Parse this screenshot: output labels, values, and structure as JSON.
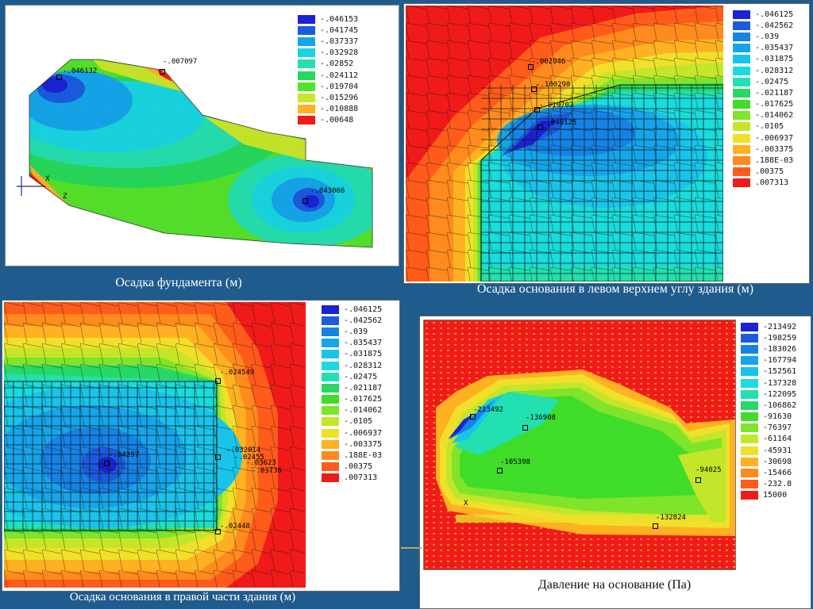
{
  "panels": {
    "p1": {
      "caption": "Осадка фундамента (м)",
      "legend": [
        {
          "v": "-.046153",
          "c": "#1a22d6"
        },
        {
          "v": "-.041745",
          "c": "#1a5be0"
        },
        {
          "v": "-.037337",
          "c": "#15a5ea"
        },
        {
          "v": "-.032928",
          "c": "#19d5e0"
        },
        {
          "v": "-.02852",
          "c": "#25dfae"
        },
        {
          "v": "-.024112",
          "c": "#27d85b"
        },
        {
          "v": "-.019704",
          "c": "#55e22a"
        },
        {
          "v": "-.015296",
          "c": "#c8e62a"
        },
        {
          "v": "-.010888",
          "c": "#ffb122"
        },
        {
          "v": "-.00648",
          "c": "#f01a1a"
        }
      ],
      "markers": [
        {
          "t": "-.046132"
        },
        {
          "t": "-.007097"
        },
        {
          "t": "-.043066"
        }
      ],
      "axis": {
        "x": "X",
        "z": "Z"
      }
    },
    "p2": {
      "caption": "Осадка основания в левом верхнем углу здания (м)",
      "legend": [
        {
          "v": "-.046125",
          "c": "#1a22d6"
        },
        {
          "v": "-.042562",
          "c": "#1a5be0"
        },
        {
          "v": "-.039",
          "c": "#1583e6"
        },
        {
          "v": "-.035437",
          "c": "#15a5ea"
        },
        {
          "v": "-.031875",
          "c": "#19c4ea"
        },
        {
          "v": "-.028312",
          "c": "#19dcdc"
        },
        {
          "v": "-.02475",
          "c": "#22e0b0"
        },
        {
          "v": "-.021187",
          "c": "#27d867"
        },
        {
          "v": "-.017625",
          "c": "#40dc2a"
        },
        {
          "v": "-.014062",
          "c": "#7fe42a"
        },
        {
          "v": "-.0105",
          "c": "#c4e62a"
        },
        {
          "v": "-.006937",
          "c": "#f0e02a"
        },
        {
          "v": "-.003375",
          "c": "#ffb122"
        },
        {
          "v": ".188E-03",
          "c": "#ff8a1d"
        },
        {
          "v": ".00375",
          "c": "#ff5b1b"
        },
        {
          "v": ".007313",
          "c": "#f01a1a"
        }
      ],
      "markers": [
        {
          "t": "-.002046"
        },
        {
          "t": "-.100298"
        },
        {
          "t": "-.010702"
        },
        {
          "t": "-.046125"
        }
      ]
    },
    "p3": {
      "caption": "Осадка основания в правой части здания (м)",
      "legend": [
        {
          "v": "-.046125",
          "c": "#1a22d6"
        },
        {
          "v": "-.042562",
          "c": "#1a5be0"
        },
        {
          "v": "-.039",
          "c": "#1583e6"
        },
        {
          "v": "-.035437",
          "c": "#15a5ea"
        },
        {
          "v": "-.031875",
          "c": "#19c4ea"
        },
        {
          "v": "-.028312",
          "c": "#19dcdc"
        },
        {
          "v": "-.02475",
          "c": "#22e0b0"
        },
        {
          "v": "-.021187",
          "c": "#27d867"
        },
        {
          "v": "-.017625",
          "c": "#40dc2a"
        },
        {
          "v": "-.014062",
          "c": "#7fe42a"
        },
        {
          "v": "-.0105",
          "c": "#c4e62a"
        },
        {
          "v": "-.006937",
          "c": "#f0e02a"
        },
        {
          "v": "-.003375",
          "c": "#ffb122"
        },
        {
          "v": ".188E-03",
          "c": "#ff8a1d"
        },
        {
          "v": ".00375",
          "c": "#ff5b1b"
        },
        {
          "v": ".007313",
          "c": "#f01a1a"
        }
      ],
      "markers": [
        {
          "t": "-.024549"
        },
        {
          "t": "-.04297"
        },
        {
          "t": "-.032014"
        },
        {
          "t": "-.03623"
        },
        {
          "t": "-.02455"
        },
        {
          "t": "-.03736"
        },
        {
          "t": "-.02448"
        }
      ]
    },
    "p4": {
      "caption": "Давление на основание (Па)",
      "legend": [
        {
          "v": "-213492",
          "c": "#1a22d6"
        },
        {
          "v": "-198259",
          "c": "#1a5be0"
        },
        {
          "v": "-183026",
          "c": "#1583e6"
        },
        {
          "v": "-167794",
          "c": "#15a5ea"
        },
        {
          "v": "-152561",
          "c": "#19c4ea"
        },
        {
          "v": "-137328",
          "c": "#19dcdc"
        },
        {
          "v": "-122095",
          "c": "#22e0b0"
        },
        {
          "v": "-106862",
          "c": "#27d867"
        },
        {
          "v": "-91630",
          "c": "#40dc2a"
        },
        {
          "v": "-76397",
          "c": "#7fe42a"
        },
        {
          "v": "-61164",
          "c": "#c4e62a"
        },
        {
          "v": "-45931",
          "c": "#f0e02a"
        },
        {
          "v": "-30698",
          "c": "#ffb122"
        },
        {
          "v": "-15466",
          "c": "#ff8a1d"
        },
        {
          "v": "-232.8",
          "c": "#ff5b1b"
        },
        {
          "v": "15000",
          "c": "#f01a1a"
        }
      ],
      "markers": [
        {
          "t": "-213492"
        },
        {
          "t": "-136908"
        },
        {
          "t": "-105398"
        },
        {
          "t": "-94025"
        },
        {
          "t": "-132824"
        }
      ],
      "axis": {
        "x": "X"
      }
    }
  }
}
